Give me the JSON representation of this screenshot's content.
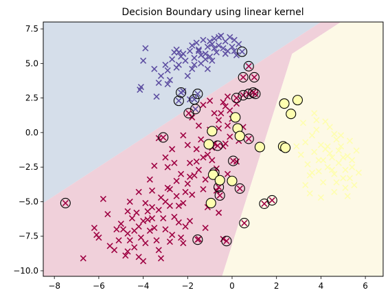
{
  "chart_data": {
    "type": "scatter",
    "title": "Decision Boundary using linear kernel",
    "xlabel": "",
    "ylabel": "",
    "xlim": [
      -8.5,
      6.8
    ],
    "ylim": [
      -10.4,
      8.0
    ],
    "xticks": [
      -8,
      -6,
      -4,
      -2,
      0,
      2,
      4,
      6
    ],
    "xtick_labels": [
      "−8",
      "−6",
      "−4",
      "−2",
      "0",
      "2",
      "4",
      "6"
    ],
    "yticks": [
      -10.0,
      -7.5,
      -5.0,
      -2.5,
      0.0,
      2.5,
      5.0,
      7.5
    ],
    "ytick_labels": [
      "−10.0",
      "−7.5",
      "−5.0",
      "−2.5",
      "0.0",
      "2.5",
      "5.0",
      "7.5"
    ],
    "grid": false,
    "colors": {
      "region_blue": "#d5deea",
      "region_pink": "#f0d0da",
      "region_yellow": "#fdf9e6",
      "class_blue": "#5e4fa2",
      "class_crimson": "#9e0142",
      "class_yellow": "#fefeb0",
      "support_vector_edge": "#000000"
    },
    "regions": [
      {
        "class": "blue",
        "color_key": "region_blue",
        "polygon": [
          [
            -8.5,
            -5.1
          ],
          [
            -8.5,
            8.0
          ],
          [
            4.0,
            8.0
          ],
          [
            -8.5,
            -5.1
          ]
        ]
      },
      {
        "class": "crimson",
        "color_key": "region_pink",
        "polygon": [
          [
            -8.5,
            -5.1
          ],
          [
            4.0,
            8.0
          ],
          [
            4.9,
            8.0
          ],
          [
            2.7,
            5.7
          ],
          [
            -0.45,
            -10.4
          ],
          [
            -8.5,
            -10.4
          ]
        ]
      },
      {
        "class": "yellow",
        "color_key": "region_yellow",
        "polygon": [
          [
            4.9,
            8.0
          ],
          [
            6.8,
            8.0
          ],
          [
            6.8,
            -10.4
          ],
          [
            -0.45,
            -10.4
          ],
          [
            2.7,
            5.7
          ]
        ]
      }
    ],
    "series": [
      {
        "class": "blue",
        "marker": "x",
        "color_key": "class_blue",
        "points": [
          [
            -3.9,
            6.1
          ],
          [
            -4.0,
            5.2
          ],
          [
            -4.1,
            3.3
          ],
          [
            -4.15,
            3.1
          ],
          [
            -3.5,
            4.6
          ],
          [
            -3.2,
            4.1
          ],
          [
            -3.0,
            4.9
          ],
          [
            -2.8,
            3.8
          ],
          [
            -2.9,
            4.5
          ],
          [
            -2.5,
            4.7
          ],
          [
            -2.3,
            5.5
          ],
          [
            -2.1,
            5.2
          ],
          [
            -2.0,
            4.1
          ],
          [
            -1.9,
            5.9
          ],
          [
            -1.8,
            4.6
          ],
          [
            -1.7,
            5.4
          ],
          [
            -1.6,
            6.5
          ],
          [
            -1.5,
            5.9
          ],
          [
            -1.4,
            5.0
          ],
          [
            -1.3,
            6.7
          ],
          [
            -1.2,
            5.7
          ],
          [
            -1.1,
            6.2
          ],
          [
            -1.0,
            5.5
          ],
          [
            -0.9,
            6.4
          ],
          [
            -0.8,
            6.8
          ],
          [
            -0.7,
            5.8
          ],
          [
            -0.6,
            6.3
          ],
          [
            -0.5,
            7.0
          ],
          [
            -0.4,
            6.1
          ],
          [
            -0.3,
            6.6
          ],
          [
            -0.2,
            5.9
          ],
          [
            -0.1,
            6.9
          ],
          [
            0.0,
            6.2
          ],
          [
            0.1,
            6.7
          ],
          [
            0.2,
            5.6
          ],
          [
            0.3,
            6.4
          ],
          [
            -1.8,
            6.3
          ],
          [
            -1.5,
            6.0
          ],
          [
            -2.6,
            5.8
          ],
          [
            -2.7,
            5.3
          ],
          [
            -0.9,
            5.2
          ],
          [
            -1.2,
            5.3
          ],
          [
            -0.6,
            6.9
          ],
          [
            -2.4,
            4.9
          ],
          [
            -3.3,
            3.6
          ],
          [
            -1.7,
            4.9
          ],
          [
            -1.4,
            5.6
          ],
          [
            -0.8,
            6.1
          ],
          [
            -2.2,
            5.7
          ],
          [
            -2.4,
            5.8
          ],
          [
            -1.0,
            6.6
          ],
          [
            -0.3,
            5.7
          ],
          [
            0.1,
            5.9
          ],
          [
            -2.9,
            3.5
          ],
          [
            -3.4,
            2.6
          ],
          [
            -2.2,
            3.0
          ],
          [
            -1.9,
            2.4
          ],
          [
            -1.1,
            4.6
          ],
          [
            -2.5,
            6.0
          ]
        ]
      },
      {
        "class": "crimson",
        "marker": "x",
        "color_key": "class_crimson",
        "points": [
          [
            -6.7,
            -9.1
          ],
          [
            -6.2,
            -6.9
          ],
          [
            -6.0,
            -7.6
          ],
          [
            -6.1,
            -7.4
          ],
          [
            -5.8,
            -4.8
          ],
          [
            -5.5,
            -8.2
          ],
          [
            -5.3,
            -8.5
          ],
          [
            -5.1,
            -7.8
          ],
          [
            -5.0,
            -6.6
          ],
          [
            -4.8,
            -8.9
          ],
          [
            -4.7,
            -7.3
          ],
          [
            -4.6,
            -7.8
          ],
          [
            -4.5,
            -6.2
          ],
          [
            -4.4,
            -7.1
          ],
          [
            -4.3,
            -5.8
          ],
          [
            -4.2,
            -6.8
          ],
          [
            -4.1,
            -7.6
          ],
          [
            -4.0,
            -6.4
          ],
          [
            -3.9,
            -5.1
          ],
          [
            -3.8,
            -6.3
          ],
          [
            -3.7,
            -7.1
          ],
          [
            -3.6,
            -5.4
          ],
          [
            -3.5,
            -6.9
          ],
          [
            -3.4,
            -7.8
          ],
          [
            -3.3,
            -5.6
          ],
          [
            -3.2,
            -4.7
          ],
          [
            -3.1,
            -6.2
          ],
          [
            -3.0,
            -7.0
          ],
          [
            -2.9,
            -4.0
          ],
          [
            -2.8,
            -5.3
          ],
          [
            -2.7,
            -7.4
          ],
          [
            -2.6,
            -6.1
          ],
          [
            -2.5,
            -4.6
          ],
          [
            -2.4,
            -6.5
          ],
          [
            -2.3,
            -3.0
          ],
          [
            -2.2,
            -5.1
          ],
          [
            -2.1,
            -4.3
          ],
          [
            -2.0,
            -3.7
          ],
          [
            -1.9,
            -2.2
          ],
          [
            -1.8,
            -4.5
          ],
          [
            -1.7,
            -3.1
          ],
          [
            -1.6,
            -1.2
          ],
          [
            -1.5,
            -2.7
          ],
          [
            -1.4,
            -0.5
          ],
          [
            -1.3,
            -4.1
          ],
          [
            -1.2,
            -3.4
          ],
          [
            -1.1,
            -1.6
          ],
          [
            -1.0,
            0.2
          ],
          [
            -0.9,
            -2.0
          ],
          [
            -0.8,
            -0.8
          ],
          [
            -0.7,
            -2.6
          ],
          [
            -0.6,
            0.9
          ],
          [
            -0.5,
            1.4
          ],
          [
            -0.4,
            -1.0
          ],
          [
            -0.3,
            1.9
          ],
          [
            -0.2,
            0.5
          ],
          [
            -0.1,
            -0.3
          ],
          [
            0.0,
            1.0
          ],
          [
            0.2,
            2.1
          ],
          [
            0.3,
            -0.6
          ],
          [
            0.5,
            0.4
          ],
          [
            -1.3,
            2.0
          ],
          [
            -1.0,
            2.3
          ],
          [
            -0.4,
            2.2
          ],
          [
            -3.3,
            -0.4
          ],
          [
            -3.0,
            -1.8
          ],
          [
            -2.6,
            -2.2
          ],
          [
            -2.0,
            -0.9
          ],
          [
            -1.8,
            1.1
          ],
          [
            -4.6,
            -5.0
          ],
          [
            -4.9,
            -7.0
          ],
          [
            -3.6,
            -4.2
          ],
          [
            -4.0,
            -9.3
          ],
          [
            -3.2,
            -9.1
          ],
          [
            -2.8,
            -7.9
          ],
          [
            -2.3,
            -7.6
          ],
          [
            -1.5,
            -7.7
          ],
          [
            -0.4,
            -7.7
          ],
          [
            -3.9,
            -8.0
          ],
          [
            -5.2,
            -7.0
          ],
          [
            -2.4,
            -5.3
          ],
          [
            -1.9,
            -6.4
          ],
          [
            -1.1,
            -5.4
          ],
          [
            -0.7,
            -4.2
          ],
          [
            -0.2,
            -3.0
          ],
          [
            -2.9,
            -2.5
          ],
          [
            -2.5,
            -3.5
          ],
          [
            -1.6,
            -2.1
          ],
          [
            -0.9,
            -1.1
          ],
          [
            -0.6,
            0.3
          ],
          [
            -0.1,
            1.6
          ],
          [
            -4.7,
            -5.7
          ],
          [
            -4.2,
            -4.3
          ],
          [
            -3.7,
            -3.4
          ],
          [
            -3.5,
            -2.4
          ],
          [
            -2.7,
            -1.2
          ],
          [
            -2.2,
            -0.2
          ],
          [
            -1.5,
            0.5
          ],
          [
            -0.8,
            1.4
          ],
          [
            -0.2,
            2.6
          ],
          [
            -3.8,
            -5.7
          ],
          [
            -2.8,
            -4.1
          ],
          [
            -1.9,
            -3.2
          ],
          [
            -1.3,
            -1.8
          ],
          [
            -0.3,
            -0.8
          ],
          [
            -4.4,
            -8.3
          ],
          [
            -4.2,
            -9.0
          ],
          [
            -3.3,
            -8.5
          ],
          [
            -2.2,
            -8.0
          ],
          [
            -1.2,
            -6.9
          ],
          [
            -0.6,
            -5.8
          ],
          [
            0.2,
            -2.1
          ],
          [
            -3.0,
            -5.0
          ],
          [
            -3.6,
            -6.2
          ],
          [
            -2.1,
            -6.8
          ],
          [
            -4.7,
            -8.6
          ],
          [
            -5.6,
            -5.9
          ]
        ]
      },
      {
        "class": "yellow",
        "marker": "x",
        "color_key": "class_yellow",
        "points": [
          [
            2.9,
            -1.0
          ],
          [
            3.1,
            -1.6
          ],
          [
            3.2,
            0.7
          ],
          [
            3.3,
            -0.7
          ],
          [
            3.4,
            -2.3
          ],
          [
            3.5,
            -3.1
          ],
          [
            3.6,
            -0.2
          ],
          [
            3.7,
            -1.4
          ],
          [
            3.8,
            0.2
          ],
          [
            3.9,
            -2.0
          ],
          [
            4.0,
            -0.9
          ],
          [
            4.1,
            -3.6
          ],
          [
            4.2,
            -1.2
          ],
          [
            4.3,
            -2.5
          ],
          [
            4.4,
            0.4
          ],
          [
            4.5,
            -1.8
          ],
          [
            4.6,
            -3.0
          ],
          [
            4.7,
            -0.5
          ],
          [
            4.8,
            -2.2
          ],
          [
            4.9,
            -1.0
          ],
          [
            5.0,
            -3.3
          ],
          [
            5.1,
            -2.7
          ],
          [
            5.2,
            -1.7
          ],
          [
            5.3,
            -0.6
          ],
          [
            5.4,
            -2.0
          ],
          [
            5.5,
            -3.8
          ],
          [
            5.6,
            -1.3
          ],
          [
            5.7,
            -2.9
          ],
          [
            4.6,
            -4.3
          ],
          [
            4.0,
            -4.7
          ],
          [
            4.8,
            -1.3
          ],
          [
            4.3,
            -1.0
          ],
          [
            3.9,
            -2.8
          ],
          [
            4.5,
            -2.7
          ],
          [
            5.1,
            -4.0
          ],
          [
            4.2,
            0.8
          ],
          [
            3.7,
            1.4
          ],
          [
            4.9,
            -0.2
          ],
          [
            5.3,
            -3.3
          ],
          [
            3.5,
            -4.4
          ],
          [
            4.7,
            -3.6
          ],
          [
            5.2,
            -4.6
          ],
          [
            4.4,
            -1.5
          ],
          [
            4.1,
            -2.0
          ],
          [
            3.6,
            -2.9
          ],
          [
            5.0,
            -1.8
          ],
          [
            5.4,
            -2.5
          ],
          [
            3.8,
            0.9
          ],
          [
            4.6,
            -0.1
          ],
          [
            3.3,
            -3.8
          ]
        ]
      }
    ],
    "support_vectors": [
      {
        "class": "blue",
        "points": [
          [
            0.45,
            5.85
          ],
          [
            -2.3,
            2.9
          ],
          [
            -2.4,
            2.3
          ],
          [
            -1.7,
            2.4
          ],
          [
            -1.65,
            1.7
          ],
          [
            -1.55,
            2.8
          ]
        ]
      },
      {
        "class": "crimson",
        "points": [
          [
            0.75,
            4.8
          ],
          [
            0.5,
            4.0
          ],
          [
            1.0,
            4.0
          ],
          [
            0.5,
            2.7
          ],
          [
            0.75,
            2.8
          ],
          [
            0.95,
            2.9
          ],
          [
            1.05,
            2.8
          ],
          [
            0.2,
            2.5
          ],
          [
            -1.95,
            1.4
          ],
          [
            -3.1,
            -0.35
          ],
          [
            0.05,
            -2.05
          ],
          [
            -0.65,
            -0.95
          ],
          [
            0.75,
            -0.45
          ],
          [
            -0.8,
            -2.9
          ],
          [
            -0.6,
            -3.95
          ],
          [
            -0.55,
            -4.55
          ],
          [
            0.35,
            -4.05
          ],
          [
            -1.55,
            -7.75
          ],
          [
            -0.25,
            -7.85
          ],
          [
            0.55,
            -6.55
          ],
          [
            1.45,
            -5.15
          ],
          [
            1.8,
            -4.9
          ],
          [
            -7.5,
            -5.1
          ]
        ]
      },
      {
        "class": "yellow",
        "points": [
          [
            2.35,
            2.1
          ],
          [
            2.95,
            2.35
          ],
          [
            2.65,
            1.35
          ],
          [
            0.15,
            1.1
          ],
          [
            0.25,
            0.3
          ],
          [
            -0.9,
            0.1
          ],
          [
            0.35,
            -0.25
          ],
          [
            -1.05,
            -0.85
          ],
          [
            1.25,
            -1.05
          ],
          [
            2.3,
            -1.0
          ],
          [
            2.4,
            -1.1
          ],
          [
            -0.85,
            -3.05
          ],
          [
            -0.55,
            -3.45
          ],
          [
            0.0,
            -3.5
          ],
          [
            -0.95,
            -5.1
          ]
        ]
      }
    ]
  }
}
